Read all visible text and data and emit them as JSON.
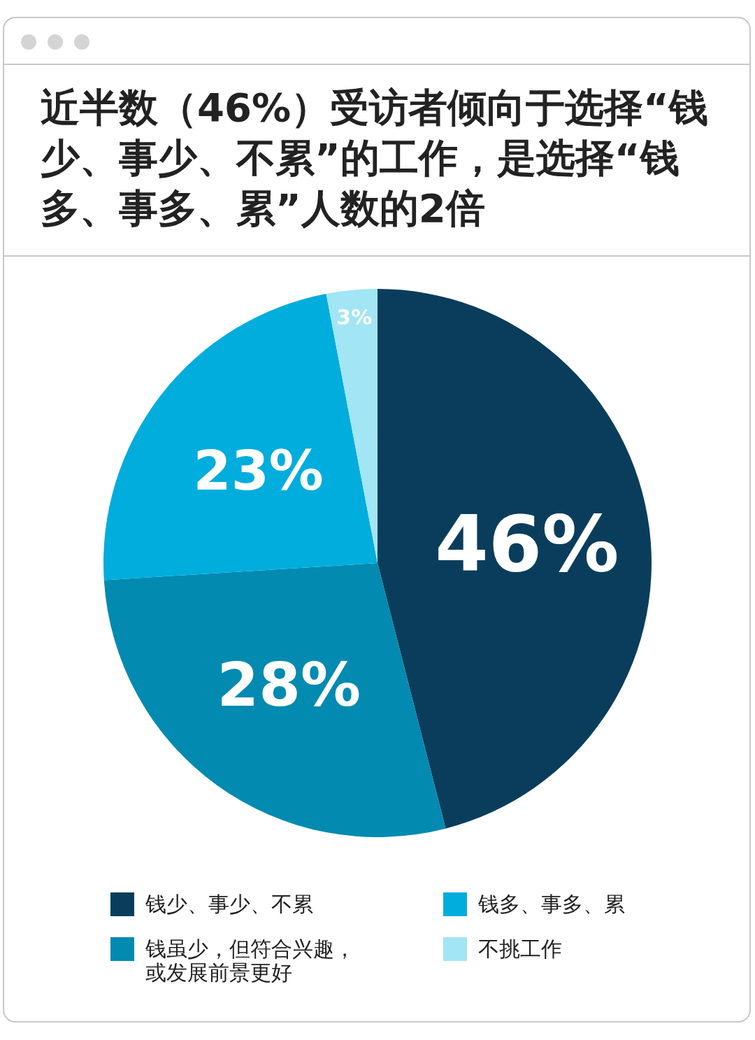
{
  "chart_data": {
    "type": "pie",
    "title": "近半数（46%）受访者倾向于选择“钱少、事少、不累”的工作，是选择“钱多、事多、累”人数的2倍",
    "categories": [
      "钱少、事少、不累",
      "钱虽少，但符合兴趣，或发展前景更好",
      "钱多、事多、累",
      "不挑工作"
    ],
    "values": [
      46,
      28,
      23,
      3
    ],
    "colors": [
      "#0a3d5c",
      "#028ab0",
      "#00addc",
      "#a2e5f5"
    ],
    "value_labels": [
      "46%",
      "28%",
      "23%",
      "3%"
    ],
    "legend": "bottom"
  }
}
